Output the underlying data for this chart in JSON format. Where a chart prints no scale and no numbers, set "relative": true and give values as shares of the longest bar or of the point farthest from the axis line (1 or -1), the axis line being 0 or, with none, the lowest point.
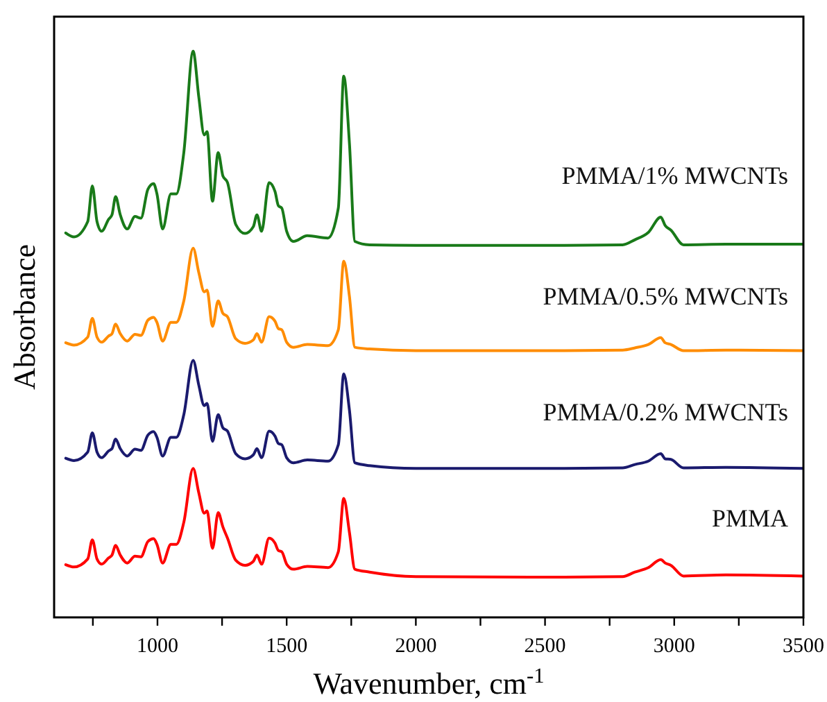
{
  "chart_data": {
    "type": "line",
    "relative": true,
    "xlabel": "Wavenumber, cm$^{-1}$",
    "ylabel": "Absorbance",
    "xlim": [
      600,
      3500
    ],
    "xticks": [
      {
        "value": 750,
        "label": null
      },
      1000,
      {
        "value": 1250,
        "label": null
      },
      1500,
      {
        "value": 1750,
        "label": null
      },
      2000,
      {
        "value": 2250,
        "label": null
      },
      2500,
      {
        "value": 2750,
        "label": null
      },
      3000,
      {
        "value": 3250,
        "label": null
      },
      3500
    ],
    "legend": false,
    "grid": false,
    "marker": "none",
    "line_style": "solid",
    "x": [
      645,
      677,
      730,
      748,
      766,
      784,
      811,
      824,
      838,
      856,
      883,
      913,
      936,
      963,
      985,
      998,
      1020,
      1052,
      1073,
      1102,
      1138,
      1160,
      1181,
      1192,
      1213,
      1235,
      1253,
      1271,
      1303,
      1339,
      1371,
      1385,
      1403,
      1432,
      1455,
      1468,
      1481,
      1500,
      1526,
      1580,
      1660,
      1700,
      1721,
      1743,
      1764,
      1821,
      2000,
      2500,
      2800,
      2848,
      2900,
      2948,
      2965,
      2987,
      3036,
      3200,
      3500
    ],
    "series": [
      {
        "name": "PMMA/1% MWCNTs",
        "color": "#197a19",
        "values": [
          0.679,
          0.672,
          0.699,
          0.762,
          0.699,
          0.682,
          0.703,
          0.711,
          0.743,
          0.711,
          0.686,
          0.708,
          0.705,
          0.756,
          0.766,
          0.748,
          0.686,
          0.748,
          0.748,
          0.821,
          1,
          0.919,
          0.852,
          0.858,
          0.735,
          0.821,
          0.78,
          0.768,
          0.694,
          0.678,
          0.69,
          0.711,
          0.682,
          0.768,
          0.752,
          0.727,
          0.723,
          0.682,
          0.664,
          0.674,
          0.67,
          0.723,
          0.956,
          0.837,
          0.664,
          0.658,
          0.657,
          0.657,
          0.658,
          0.667,
          0.68,
          0.707,
          0.692,
          0.684,
          0.658,
          0.659,
          0.659
        ]
      },
      {
        "name": "PMMA/0.5% MWCNTs",
        "color": "#ff8c00",
        "values": [
          0.485,
          0.481,
          0.495,
          0.528,
          0.495,
          0.486,
          0.497,
          0.501,
          0.518,
          0.501,
          0.488,
          0.5,
          0.498,
          0.525,
          0.53,
          0.521,
          0.488,
          0.521,
          0.521,
          0.559,
          0.652,
          0.609,
          0.575,
          0.578,
          0.514,
          0.559,
          0.537,
          0.531,
          0.492,
          0.484,
          0.49,
          0.501,
          0.486,
          0.531,
          0.523,
          0.51,
          0.508,
          0.486,
          0.477,
          0.482,
          0.48,
          0.508,
          0.629,
          0.567,
          0.477,
          0.474,
          0.471,
          0.471,
          0.472,
          0.476,
          0.482,
          0.494,
          0.485,
          0.482,
          0.471,
          0.472,
          0.471
        ]
      },
      {
        "name": "PMMA/0.2% MWCNTs",
        "color": "#1a1a6e",
        "values": [
          0.281,
          0.277,
          0.292,
          0.326,
          0.292,
          0.282,
          0.294,
          0.298,
          0.315,
          0.298,
          0.285,
          0.297,
          0.295,
          0.322,
          0.328,
          0.318,
          0.285,
          0.318,
          0.318,
          0.358,
          0.454,
          0.41,
          0.374,
          0.378,
          0.311,
          0.358,
          0.335,
          0.329,
          0.289,
          0.28,
          0.287,
          0.298,
          0.282,
          0.329,
          0.32,
          0.307,
          0.305,
          0.282,
          0.273,
          0.278,
          0.276,
          0.305,
          0.43,
          0.366,
          0.273,
          0.268,
          0.263,
          0.263,
          0.264,
          0.27,
          0.276,
          0.289,
          0.28,
          0.279,
          0.264,
          0.265,
          0.263
        ]
      },
      {
        "name": "PMMA",
        "color": "#ff0000",
        "values": [
          0.093,
          0.089,
          0.103,
          0.137,
          0.103,
          0.094,
          0.105,
          0.11,
          0.127,
          0.11,
          0.096,
          0.108,
          0.107,
          0.134,
          0.139,
          0.129,
          0.096,
          0.129,
          0.129,
          0.168,
          0.263,
          0.22,
          0.184,
          0.188,
          0.122,
          0.185,
          0.16,
          0.14,
          0.101,
          0.092,
          0.099,
          0.11,
          0.094,
          0.14,
          0.131,
          0.118,
          0.116,
          0.094,
          0.085,
          0.09,
          0.088,
          0.116,
          0.21,
          0.15,
          0.085,
          0.08,
          0.072,
          0.071,
          0.072,
          0.08,
          0.088,
          0.102,
          0.096,
          0.092,
          0.073,
          0.075,
          0.073
        ]
      }
    ]
  }
}
